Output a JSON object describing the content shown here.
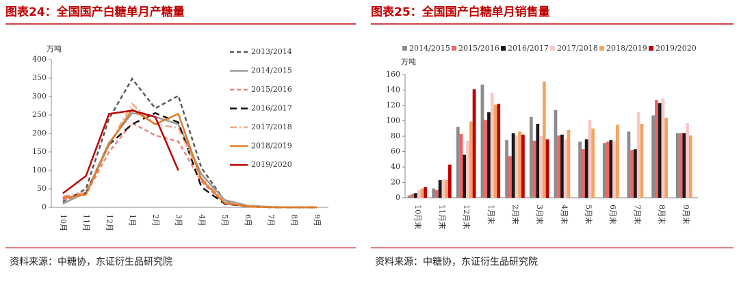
{
  "chart_data": [
    {
      "type": "line",
      "title": "图表24：全国国产白糖单月产糖量",
      "source": "资料来源：中糖协，东证衍生品研究院",
      "ylabel": "万吨",
      "categories": [
        "10月",
        "11月",
        "12月",
        "1月",
        "2月",
        "3月",
        "4月",
        "5月",
        "6月",
        "7月",
        "8月",
        "9月"
      ],
      "ylim": [
        0,
        400
      ],
      "yticks": [
        0,
        50,
        100,
        150,
        200,
        250,
        300,
        350,
        400
      ],
      "series": [
        {
          "name": "2013/2014",
          "color": "#5a5a5a",
          "dash": "dash",
          "values": [
            15,
            50,
            240,
            348,
            268,
            302,
            107,
            18,
            3,
            1,
            0,
            0
          ]
        },
        {
          "name": "2014/2015",
          "color": "#9a9a9a",
          "dash": "solid",
          "values": [
            10,
            40,
            175,
            255,
            245,
            225,
            90,
            20,
            5,
            1,
            0,
            0
          ]
        },
        {
          "name": "2015/2016",
          "color": "#f08080",
          "dash": "dash",
          "values": [
            20,
            35,
            150,
            228,
            195,
            178,
            70,
            10,
            3,
            1,
            0,
            0
          ]
        },
        {
          "name": "2016/2017",
          "color": "#111111",
          "dash": "longdash",
          "values": [
            25,
            38,
            170,
            225,
            255,
            230,
            55,
            10,
            2,
            0,
            0,
            0
          ]
        },
        {
          "name": "2017/2018",
          "color": "#f4a582",
          "dash": "dashdot",
          "values": [
            30,
            40,
            170,
            280,
            225,
            215,
            80,
            15,
            3,
            1,
            0,
            0
          ]
        },
        {
          "name": "2018/2019",
          "color": "#e07b26",
          "dash": "solid",
          "values": [
            25,
            35,
            170,
            265,
            225,
            253,
            75,
            12,
            2,
            0,
            0,
            0
          ]
        },
        {
          "name": "2019/2020",
          "color": "#c00000",
          "dash": "solid",
          "values": [
            38,
            85,
            253,
            262,
            245,
            100,
            null,
            null,
            null,
            null,
            null,
            null
          ]
        }
      ]
    },
    {
      "type": "bar",
      "title": "图表25：全国国产白糖单月销售量",
      "source": "资料来源：中糖协，东证衍生品研究院",
      "ylabel": "万吨",
      "categories": [
        "10月末",
        "11月末",
        "12月末",
        "1月末",
        "2月末",
        "3月末",
        "4月末",
        "5月末",
        "6月末",
        "7月末",
        "8月末",
        "9月末"
      ],
      "ylim": [
        0,
        160
      ],
      "yticks": [
        0,
        20,
        40,
        60,
        80,
        100,
        120,
        140,
        160
      ],
      "series": [
        {
          "name": "2014/2015",
          "color": "#8c8c8c",
          "values": [
            3,
            12,
            92,
            147,
            75,
            105,
            114,
            73,
            71,
            86,
            107,
            84
          ]
        },
        {
          "name": "2015/2016",
          "color": "#f06464",
          "values": [
            5,
            10,
            83,
            101,
            54,
            74,
            81,
            63,
            73,
            62,
            127,
            84
          ]
        },
        {
          "name": "2016/2017",
          "color": "#1a1a1a",
          "values": [
            6,
            23,
            56,
            111,
            84,
            96,
            82,
            76,
            75,
            63,
            123,
            84
          ]
        },
        {
          "name": "2017/2018",
          "color": "#f8c8c8",
          "values": [
            10,
            24,
            74,
            136,
            81,
            80,
            76,
            101,
            74,
            111,
            129,
            97
          ]
        },
        {
          "name": "2018/2019",
          "color": "#f4a460",
          "values": [
            12,
            23,
            99,
            121,
            86,
            151,
            88,
            90,
            95,
            96,
            104,
            81
          ]
        },
        {
          "name": "2019/2020",
          "color": "#c00000",
          "values": [
            14,
            43,
            141,
            122,
            82,
            76,
            null,
            null,
            null,
            null,
            null,
            null
          ]
        }
      ]
    }
  ]
}
